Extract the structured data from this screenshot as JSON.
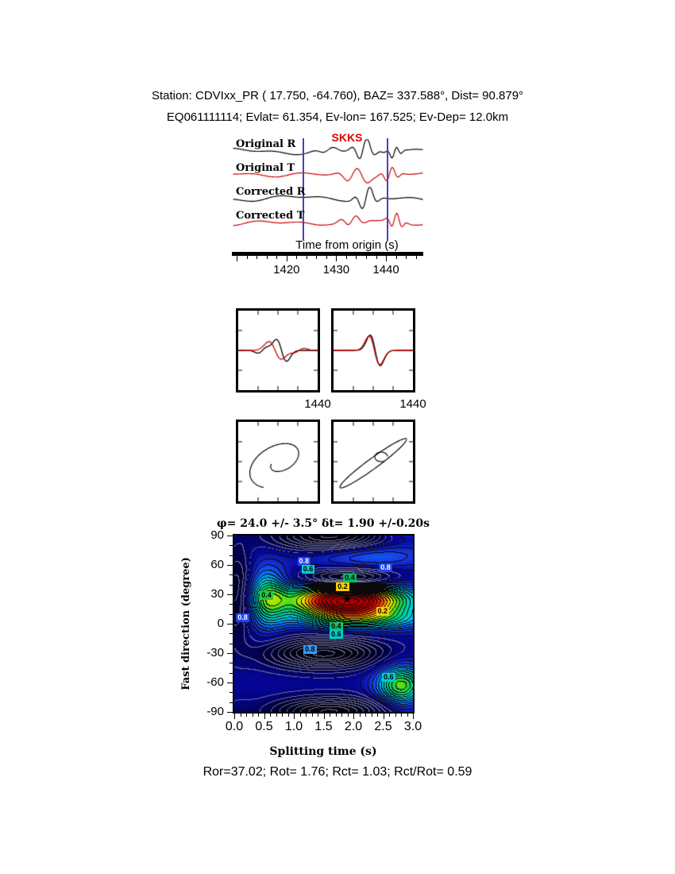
{
  "header": {
    "line1": "Station: CDVIxx_PR (  17.750,  -64.760), BAZ=  337.588°, Dist=   90.879°",
    "line2": "EQ061111114; Evlat=  61.354, Ev-lon= 167.525; Ev-Dep= 12.0km"
  },
  "seismogram_panel": {
    "phase_label": "SKKS",
    "phase_color": "#dd0000",
    "trace_labels": [
      "Original R",
      "Original T",
      "Corrected R",
      "Corrected T"
    ],
    "trace_colors": [
      "#000000",
      "#cc0000",
      "#000000",
      "#cc0000"
    ],
    "window_color": "#4444bb",
    "window_times": [
      1423.2,
      1440.2
    ],
    "time_axis": {
      "label": "Time from origin (s)",
      "ticks": [
        1420,
        1430,
        1440
      ],
      "minor_step": 2,
      "range": [
        1409,
        1447.5
      ]
    }
  },
  "waveform_boxes": {
    "left_label": "1440",
    "right_label": "1440",
    "trace_colors": [
      "#000000",
      "#cc0000"
    ]
  },
  "chart_data": {
    "type": "heatmap",
    "title": "φ= 24.0 +/- 3.5°  δt= 1.90 +/-0.20s",
    "xlabel": "Splitting time (s)",
    "ylabel": "Fast direction (degree)",
    "xlim": [
      0,
      3
    ],
    "ylim": [
      -90,
      90
    ],
    "xticks": [
      0.0,
      0.5,
      1.0,
      1.5,
      2.0,
      2.5,
      3.0
    ],
    "xtick_labels": [
      "0.0",
      "0.5",
      "1.0",
      "1.5",
      "2.0",
      "2.5",
      "3.0"
    ],
    "yticks": [
      90,
      60,
      30,
      0,
      -30,
      -60,
      -90
    ],
    "x_minor_step": 0.1,
    "y_minor_step": 10,
    "grid": false,
    "best": {
      "phi_deg": 24.0,
      "phi_err_deg": 3.5,
      "dt_s": 1.9,
      "dt_err_s": 0.2
    },
    "star": {
      "x": 1.9,
      "y": 24
    },
    "contour_interval": 0.05,
    "contour_labels": [
      {
        "text": "0.8",
        "x": 0.15,
        "y": 6,
        "bg": "#2244ee",
        "fg": "#ffffff"
      },
      {
        "text": "0.4",
        "x": 0.55,
        "y": 28,
        "bg": "#22cc44",
        "fg": "#000000"
      },
      {
        "text": "0.8",
        "x": 1.18,
        "y": 63,
        "bg": "#2244ee",
        "fg": "#ffffff"
      },
      {
        "text": "0.6",
        "x": 1.25,
        "y": 55,
        "bg": "#00cccc",
        "fg": "#000000"
      },
      {
        "text": "0.8",
        "x": 2.55,
        "y": 57,
        "bg": "#2244ee",
        "fg": "#ffffff"
      },
      {
        "text": "0.4",
        "x": 1.95,
        "y": 46,
        "bg": "#00bb66",
        "fg": "#000000"
      },
      {
        "text": "0.2",
        "x": 1.83,
        "y": 37,
        "bg": "#ffcc00",
        "fg": "#000000"
      },
      {
        "text": "0.2",
        "x": 2.5,
        "y": 12,
        "bg": "#ffcc00",
        "fg": "#000000"
      },
      {
        "text": "0.4",
        "x": 1.72,
        "y": -3,
        "bg": "#22bb66",
        "fg": "#000000"
      },
      {
        "text": "0.6",
        "x": 1.72,
        "y": -11,
        "bg": "#00cccc",
        "fg": "#000000"
      },
      {
        "text": "0.8",
        "x": 1.28,
        "y": -27,
        "bg": "#3399ff",
        "fg": "#000000"
      },
      {
        "text": "0.6",
        "x": 2.6,
        "y": -55,
        "bg": "#00cccc",
        "fg": "#000000"
      }
    ]
  },
  "result_line": "Ror=37.02; Rot= 1.76; Rct= 1.03; Rct/Rot= 0.59"
}
